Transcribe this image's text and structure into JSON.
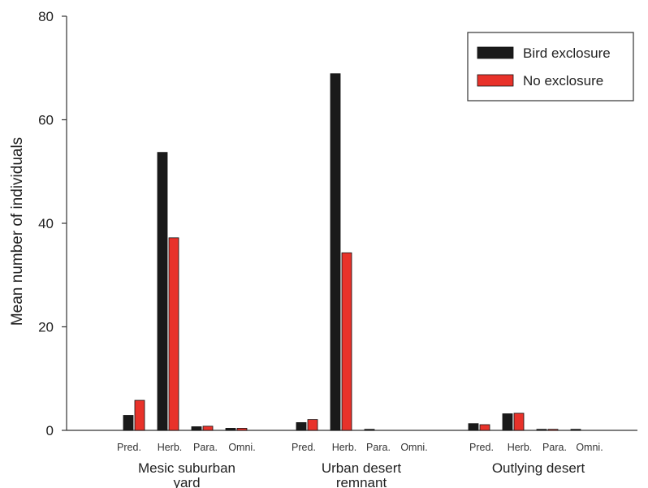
{
  "chart_data": {
    "type": "bar",
    "title": "",
    "ylabel": "Mean number of individuals",
    "ylim": [
      0,
      80
    ],
    "yticks": [
      "0",
      "20",
      "40",
      "60",
      "80"
    ],
    "groups": [
      {
        "label_line1": "Mesic suburban",
        "label_line2": "yard",
        "subcategories": [
          "Pred.",
          "Herb.",
          "Para.",
          "Omni."
        ]
      },
      {
        "label_line1": "Urban desert",
        "label_line2": "remnant",
        "subcategories": [
          "Pred.",
          "Herb.",
          "Para.",
          "Omni."
        ]
      },
      {
        "label_line1": "Outlying desert",
        "label_line2": "",
        "subcategories": [
          "Pred.",
          "Herb.",
          "Para.",
          "Omni."
        ]
      }
    ],
    "series": [
      {
        "name": "Bird exclosure",
        "color": "#1a1a1a",
        "values": [
          [
            2.9,
            53.7,
            0.7,
            0.4
          ],
          [
            1.5,
            68.9,
            0.2,
            0.0
          ],
          [
            1.3,
            3.2,
            0.2,
            0.2
          ]
        ]
      },
      {
        "name": "No exclosure",
        "color": "#e8322a",
        "values": [
          [
            5.8,
            37.2,
            0.8,
            0.4
          ],
          [
            2.1,
            34.3,
            0.0,
            0.0
          ],
          [
            1.1,
            3.3,
            0.2,
            0.0
          ]
        ]
      }
    ],
    "legend_position": "top-right",
    "grid": false
  }
}
